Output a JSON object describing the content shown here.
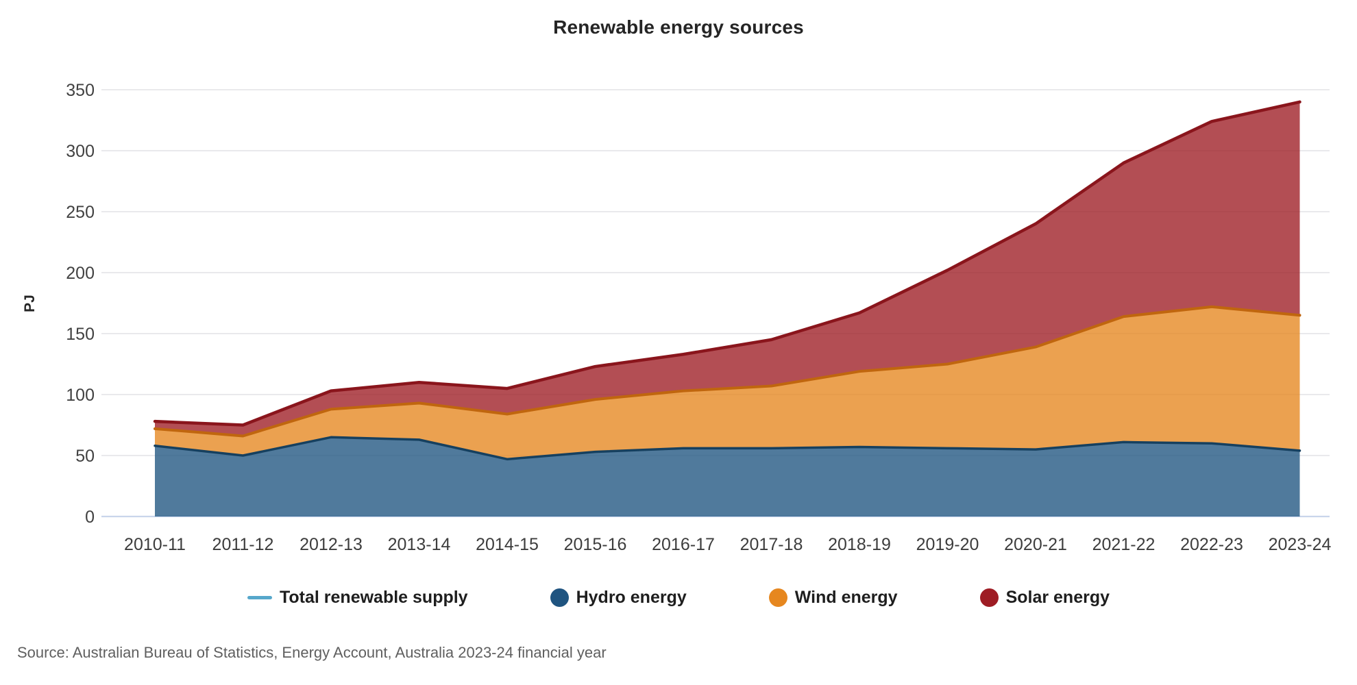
{
  "title": "Renewable energy sources",
  "source": "Source: Australian Bureau of Statistics, Energy Account, Australia 2023-24 financial year",
  "y_axis": {
    "label": "PJ",
    "ticks": [
      0,
      50,
      100,
      150,
      200,
      250,
      300,
      350
    ],
    "max": 350
  },
  "chart_data": {
    "type": "area",
    "stacked": true,
    "title": "Renewable energy sources",
    "xlabel": "",
    "ylabel": "PJ",
    "ylim": [
      0,
      350
    ],
    "grid": true,
    "legend_position": "bottom",
    "categories": [
      "2010-11",
      "2011-12",
      "2012-13",
      "2013-14",
      "2014-15",
      "2015-16",
      "2016-17",
      "2017-18",
      "2018-19",
      "2019-20",
      "2020-21",
      "2021-22",
      "2022-23",
      "2023-24"
    ],
    "series": [
      {
        "name": "Hydro energy",
        "color": "#1F5480",
        "edge": "#16405F",
        "values": [
          58,
          50,
          65,
          63,
          47,
          53,
          56,
          56,
          57,
          56,
          55,
          61,
          60,
          54
        ]
      },
      {
        "name": "Wind energy",
        "color": "#E6871F",
        "edge": "#C0660E",
        "values": [
          14,
          16,
          23,
          30,
          37,
          43,
          47,
          51,
          62,
          69,
          84,
          103,
          112,
          111
        ]
      },
      {
        "name": "Solar energy",
        "color": "#9E1C24",
        "edge": "#8A151C",
        "values": [
          6,
          9,
          15,
          17,
          21,
          27,
          30,
          38,
          48,
          77,
          101,
          126,
          152,
          175
        ]
      }
    ],
    "total_line": {
      "name": "Total renewable supply",
      "color": "#56A7CB",
      "values": [
        78,
        75,
        103,
        110,
        105,
        123,
        133,
        145,
        167,
        202,
        240,
        290,
        324,
        340
      ],
      "note": "coincides with top edge of stacked areas"
    }
  },
  "legend": {
    "items": [
      {
        "label": "Total renewable supply",
        "type": "line",
        "color": "#56A7CB"
      },
      {
        "label": "Hydro energy",
        "type": "dot",
        "color": "#1F5480"
      },
      {
        "label": "Wind energy",
        "type": "dot",
        "color": "#E6871F"
      },
      {
        "label": "Solar energy",
        "type": "dot",
        "color": "#9E1C24"
      }
    ]
  },
  "colors": {
    "gridline": "#E2E2E6",
    "baseline": "#C9D5EB",
    "tick_text": "#414141",
    "title_text": "#252525"
  }
}
